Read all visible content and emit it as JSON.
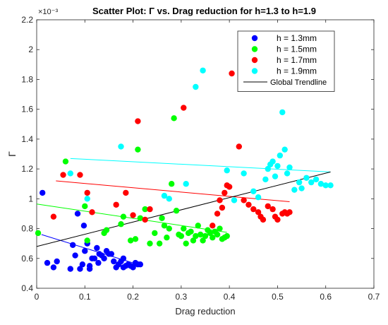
{
  "chart_data": {
    "type": "scatter",
    "title": "Scatter Plot: Γ vs. Drag reduction for h=1.3 to h=1.9",
    "exponent_label": "×10⁻³",
    "xlabel": "Drag reduction",
    "ylabel": "Γ",
    "xlim": [
      0,
      0.7
    ],
    "ylim": [
      0.4,
      2.2
    ],
    "xticks": [
      "0",
      "0.1",
      "0.2",
      "0.3",
      "0.4",
      "0.5",
      "0.6",
      "0.7"
    ],
    "yticks": [
      "0.4",
      "0.6",
      "0.8",
      "1",
      "1.2",
      "1.4",
      "1.6",
      "1.8",
      "2",
      "2.2"
    ],
    "legend_position": "top-right",
    "grid": false,
    "series": [
      {
        "name": "h = 1.3mm",
        "color": "#0000ff",
        "points": [
          [
            0.012,
            1.04
          ],
          [
            0.022,
            0.57
          ],
          [
            0.035,
            0.54
          ],
          [
            0.042,
            0.58
          ],
          [
            0.07,
            0.53
          ],
          [
            0.075,
            0.69
          ],
          [
            0.08,
            0.62
          ],
          [
            0.085,
            0.9
          ],
          [
            0.09,
            0.53
          ],
          [
            0.095,
            0.56
          ],
          [
            0.098,
            0.82
          ],
          [
            0.1,
            0.65
          ],
          [
            0.105,
            0.7
          ],
          [
            0.11,
            0.55
          ],
          [
            0.11,
            0.53
          ],
          [
            0.115,
            0.6
          ],
          [
            0.12,
            0.6
          ],
          [
            0.125,
            0.67
          ],
          [
            0.128,
            0.57
          ],
          [
            0.13,
            0.63
          ],
          [
            0.135,
            0.62
          ],
          [
            0.14,
            0.6
          ],
          [
            0.145,
            0.65
          ],
          [
            0.15,
            0.63
          ],
          [
            0.155,
            0.63
          ],
          [
            0.16,
            0.58
          ],
          [
            0.165,
            0.54
          ],
          [
            0.17,
            0.56
          ],
          [
            0.175,
            0.58
          ],
          [
            0.18,
            0.6
          ],
          [
            0.18,
            0.54
          ],
          [
            0.185,
            0.55
          ],
          [
            0.19,
            0.56
          ],
          [
            0.195,
            0.55
          ],
          [
            0.2,
            0.54
          ],
          [
            0.205,
            0.57
          ],
          [
            0.21,
            0.56
          ],
          [
            0.215,
            0.56
          ]
        ],
        "trend": [
          [
            0.01,
            0.76
          ],
          [
            0.21,
            0.56
          ]
        ]
      },
      {
        "name": "h = 1.5mm",
        "color": "#00ff00",
        "points": [
          [
            0.003,
            0.77
          ],
          [
            0.06,
            1.25
          ],
          [
            0.1,
            0.95
          ],
          [
            0.105,
            0.72
          ],
          [
            0.14,
            0.77
          ],
          [
            0.145,
            0.79
          ],
          [
            0.175,
            0.83
          ],
          [
            0.18,
            0.88
          ],
          [
            0.195,
            0.72
          ],
          [
            0.205,
            0.73
          ],
          [
            0.21,
            1.33
          ],
          [
            0.215,
            0.87
          ],
          [
            0.225,
            0.93
          ],
          [
            0.235,
            0.7
          ],
          [
            0.245,
            0.77
          ],
          [
            0.255,
            0.7
          ],
          [
            0.26,
            0.87
          ],
          [
            0.265,
            0.82
          ],
          [
            0.27,
            0.74
          ],
          [
            0.275,
            0.8
          ],
          [
            0.28,
            1.1
          ],
          [
            0.285,
            1.54
          ],
          [
            0.29,
            0.92
          ],
          [
            0.295,
            0.76
          ],
          [
            0.3,
            0.75
          ],
          [
            0.305,
            0.8
          ],
          [
            0.31,
            0.7
          ],
          [
            0.315,
            0.77
          ],
          [
            0.32,
            0.78
          ],
          [
            0.325,
            0.72
          ],
          [
            0.33,
            0.75
          ],
          [
            0.335,
            0.82
          ],
          [
            0.34,
            0.76
          ],
          [
            0.345,
            0.72
          ],
          [
            0.35,
            0.75
          ],
          [
            0.355,
            0.79
          ],
          [
            0.36,
            0.77
          ],
          [
            0.365,
            0.74
          ],
          [
            0.37,
            0.78
          ],
          [
            0.375,
            0.76
          ],
          [
            0.38,
            0.8
          ],
          [
            0.385,
            0.73
          ],
          [
            0.39,
            0.74
          ],
          [
            0.395,
            0.75
          ]
        ],
        "trend": [
          [
            0,
            0.965
          ],
          [
            0.395,
            0.775
          ]
        ]
      },
      {
        "name": "h = 1.7mm",
        "color": "#ff0000",
        "points": [
          [
            0.035,
            0.88
          ],
          [
            0.055,
            1.16
          ],
          [
            0.09,
            1.16
          ],
          [
            0.105,
            1.04
          ],
          [
            0.115,
            0.91
          ],
          [
            0.165,
            0.96
          ],
          [
            0.185,
            1.04
          ],
          [
            0.2,
            0.89
          ],
          [
            0.21,
            1.52
          ],
          [
            0.225,
            0.86
          ],
          [
            0.235,
            0.93
          ],
          [
            0.305,
            1.61
          ],
          [
            0.365,
            0.82
          ],
          [
            0.375,
            0.9
          ],
          [
            0.38,
            0.99
          ],
          [
            0.385,
            0.94
          ],
          [
            0.39,
            1.04
          ],
          [
            0.395,
            1.09
          ],
          [
            0.4,
            1.08
          ],
          [
            0.405,
            1.84
          ],
          [
            0.42,
            1.35
          ],
          [
            0.43,
            0.99
          ],
          [
            0.44,
            0.96
          ],
          [
            0.45,
            0.93
          ],
          [
            0.46,
            0.91
          ],
          [
            0.465,
            0.88
          ],
          [
            0.47,
            0.86
          ],
          [
            0.48,
            0.95
          ],
          [
            0.49,
            0.93
          ],
          [
            0.495,
            0.88
          ],
          [
            0.5,
            0.86
          ],
          [
            0.51,
            0.9
          ],
          [
            0.515,
            0.91
          ],
          [
            0.52,
            0.9
          ],
          [
            0.525,
            0.91
          ]
        ],
        "trend": [
          [
            0.04,
            1.12
          ],
          [
            0.525,
            0.98
          ]
        ]
      },
      {
        "name": "h = 1.9mm",
        "color": "#00ffff",
        "points": [
          [
            0.07,
            1.17
          ],
          [
            0.105,
            1.0
          ],
          [
            0.175,
            1.35
          ],
          [
            0.265,
            1.02
          ],
          [
            0.275,
            1.0
          ],
          [
            0.31,
            1.1
          ],
          [
            0.33,
            1.75
          ],
          [
            0.345,
            1.86
          ],
          [
            0.395,
            1.19
          ],
          [
            0.41,
            0.99
          ],
          [
            0.43,
            1.17
          ],
          [
            0.45,
            1.05
          ],
          [
            0.46,
            1.01
          ],
          [
            0.475,
            1.13
          ],
          [
            0.48,
            1.2
          ],
          [
            0.485,
            1.23
          ],
          [
            0.49,
            1.25
          ],
          [
            0.495,
            1.15
          ],
          [
            0.5,
            1.22
          ],
          [
            0.505,
            1.29
          ],
          [
            0.51,
            1.58
          ],
          [
            0.515,
            1.33
          ],
          [
            0.52,
            1.17
          ],
          [
            0.525,
            1.21
          ],
          [
            0.535,
            1.06
          ],
          [
            0.545,
            1.11
          ],
          [
            0.55,
            1.07
          ],
          [
            0.56,
            1.14
          ],
          [
            0.57,
            1.11
          ],
          [
            0.58,
            1.13
          ],
          [
            0.59,
            1.1
          ],
          [
            0.6,
            1.09
          ],
          [
            0.61,
            1.09
          ]
        ],
        "trend": [
          [
            0.07,
            1.27
          ],
          [
            0.61,
            1.18
          ]
        ]
      }
    ],
    "global_trend": {
      "name": "Global Trendline",
      "color": "#000000",
      "points": [
        [
          0,
          0.68
        ],
        [
          0.61,
          1.18
        ]
      ]
    }
  }
}
